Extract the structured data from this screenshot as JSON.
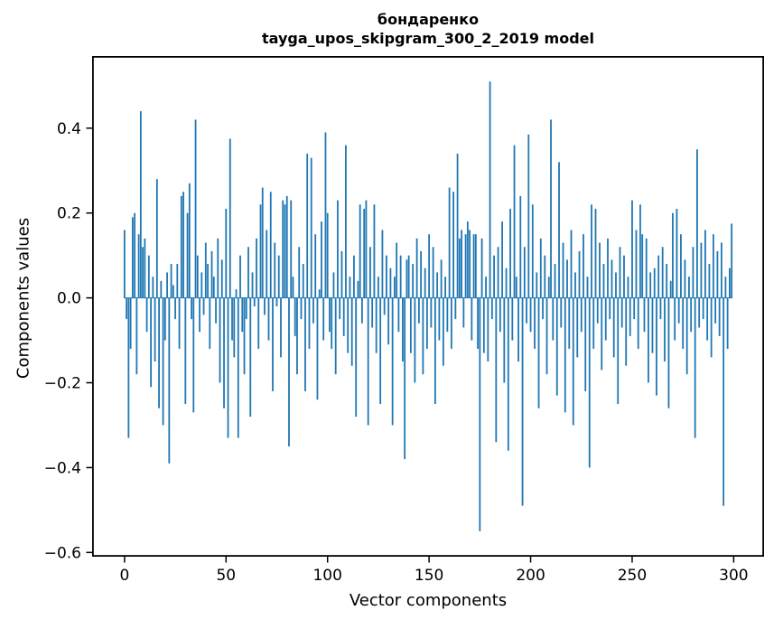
{
  "figure": {
    "title": "бондаренко",
    "subtitle": "tayga_upos_skipgram_300_2_2019 model"
  },
  "chart_data": {
    "type": "bar",
    "title": "бондаренко",
    "subtitle": "tayga_upos_skipgram_300_2_2019 model",
    "xlabel": "Vector components",
    "ylabel": "Components values",
    "bar_color": "#1f77b4",
    "spine_color": "#000000",
    "legend": "none",
    "grid": false,
    "xlim": [
      -15.95,
      314.95
    ],
    "ylim": [
      -0.61,
      0.57
    ],
    "x_ticks": [
      0,
      50,
      100,
      150,
      200,
      250,
      300
    ],
    "x_tick_labels": [
      "0",
      "50",
      "100",
      "150",
      "200",
      "250",
      "300"
    ],
    "y_ticks": [
      -0.6,
      -0.4,
      -0.2,
      0.0,
      0.2,
      0.4
    ],
    "y_tick_labels": [
      "−0.6",
      "−0.4",
      "−0.2",
      "0.0",
      "0.2",
      "0.4"
    ],
    "x_note": "x values are vector component indices 0..299",
    "values": [
      0.16,
      -0.05,
      -0.33,
      -0.12,
      0.19,
      0.2,
      -0.18,
      0.15,
      0.44,
      0.12,
      0.14,
      -0.08,
      0.1,
      -0.21,
      0.05,
      -0.15,
      0.28,
      -0.26,
      0.04,
      -0.3,
      -0.1,
      0.06,
      -0.39,
      0.08,
      0.03,
      -0.05,
      0.08,
      -0.12,
      0.24,
      0.25,
      -0.25,
      0.2,
      0.27,
      -0.05,
      -0.27,
      0.42,
      0.1,
      -0.08,
      0.06,
      -0.04,
      0.13,
      0.08,
      -0.12,
      0.11,
      0.05,
      -0.06,
      0.14,
      -0.2,
      0.09,
      -0.26,
      0.21,
      -0.33,
      0.375,
      -0.1,
      -0.14,
      0.02,
      -0.33,
      0.1,
      -0.08,
      -0.18,
      -0.05,
      0.12,
      -0.28,
      0.06,
      -0.02,
      0.14,
      -0.12,
      0.22,
      0.26,
      -0.04,
      0.16,
      -0.1,
      0.25,
      -0.22,
      0.13,
      -0.02,
      0.1,
      -0.14,
      0.23,
      0.22,
      0.24,
      -0.35,
      0.23,
      0.05,
      -0.09,
      -0.18,
      0.12,
      -0.05,
      0.08,
      -0.22,
      0.34,
      -0.12,
      0.33,
      -0.06,
      0.15,
      -0.24,
      0.02,
      0.18,
      -0.1,
      0.39,
      0.2,
      -0.08,
      -0.12,
      0.06,
      -0.18,
      0.23,
      -0.05,
      0.11,
      -0.09,
      0.36,
      -0.13,
      0.05,
      -0.16,
      0.1,
      -0.28,
      0.04,
      0.22,
      -0.06,
      0.21,
      0.23,
      -0.3,
      0.12,
      -0.07,
      0.22,
      -0.13,
      0.05,
      -0.25,
      0.16,
      -0.04,
      0.1,
      -0.11,
      0.07,
      -0.3,
      0.05,
      0.13,
      -0.08,
      0.1,
      -0.15,
      -0.38,
      0.09,
      0.1,
      -0.13,
      0.08,
      -0.2,
      0.14,
      -0.06,
      0.11,
      -0.18,
      0.07,
      -0.12,
      0.15,
      -0.07,
      0.12,
      -0.25,
      0.06,
      -0.1,
      0.09,
      -0.16,
      0.05,
      -0.08,
      0.26,
      -0.12,
      0.25,
      -0.05,
      0.34,
      0.14,
      0.16,
      -0.07,
      0.15,
      0.18,
      0.16,
      -0.1,
      0.15,
      0.15,
      -0.12,
      -0.55,
      0.14,
      -0.13,
      0.05,
      -0.15,
      0.51,
      -0.05,
      0.1,
      -0.34,
      0.12,
      -0.08,
      0.18,
      -0.2,
      0.07,
      -0.36,
      0.21,
      -0.1,
      0.36,
      0.05,
      -0.15,
      0.24,
      -0.49,
      0.12,
      -0.06,
      0.385,
      -0.08,
      0.22,
      -0.12,
      0.06,
      -0.26,
      0.14,
      -0.05,
      0.1,
      -0.18,
      0.05,
      0.42,
      -0.1,
      0.08,
      -0.23,
      0.32,
      -0.07,
      0.13,
      -0.27,
      0.09,
      -0.12,
      0.16,
      -0.3,
      0.06,
      -0.14,
      0.11,
      -0.08,
      0.15,
      -0.22,
      0.05,
      -0.4,
      0.22,
      -0.12,
      0.21,
      -0.06,
      0.13,
      -0.17,
      0.08,
      -0.1,
      0.14,
      -0.05,
      0.09,
      -0.14,
      0.06,
      -0.25,
      0.12,
      -0.07,
      0.1,
      -0.16,
      0.05,
      -0.09,
      0.23,
      -0.05,
      0.16,
      -0.12,
      0.22,
      0.15,
      -0.08,
      0.14,
      -0.2,
      0.06,
      -0.13,
      0.07,
      -0.23,
      0.1,
      -0.05,
      0.12,
      -0.15,
      0.08,
      -0.26,
      0.04,
      0.2,
      -0.1,
      0.21,
      -0.06,
      0.15,
      -0.12,
      0.09,
      -0.18,
      0.05,
      -0.08,
      0.12,
      -0.33,
      0.35,
      -0.07,
      0.13,
      -0.05,
      0.16,
      -0.1,
      0.08,
      -0.14,
      0.15,
      -0.06,
      0.11,
      -0.09,
      0.13,
      -0.49,
      0.05,
      -0.12,
      0.07,
      0.175
    ]
  }
}
